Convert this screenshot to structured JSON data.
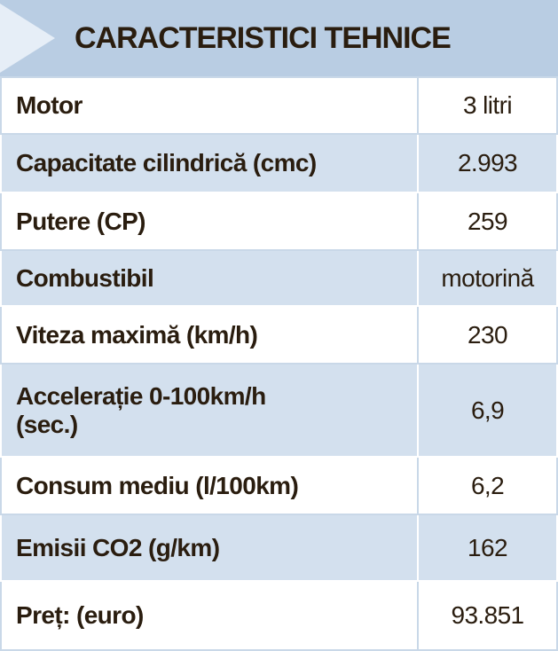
{
  "header": {
    "title": "CARACTERISTICI TEHNICE"
  },
  "table": {
    "rows": [
      [
        "Motor",
        "3 litri"
      ],
      [
        "Capacitate cilindrică (cmc)",
        "2.993"
      ],
      [
        "Putere (CP)",
        "259"
      ],
      [
        "Combustibil",
        "motorină"
      ],
      [
        "Viteza maximă (km/h)",
        "230"
      ],
      [
        "Accelerație 0-100km/h\n(sec.)",
        "6,9"
      ],
      [
        "Consum mediu (l/100km)",
        "6,2"
      ],
      [
        "Emisii CO2 (g/km)",
        "162"
      ],
      [
        "Preț: (euro)",
        "93.851"
      ]
    ]
  }
}
